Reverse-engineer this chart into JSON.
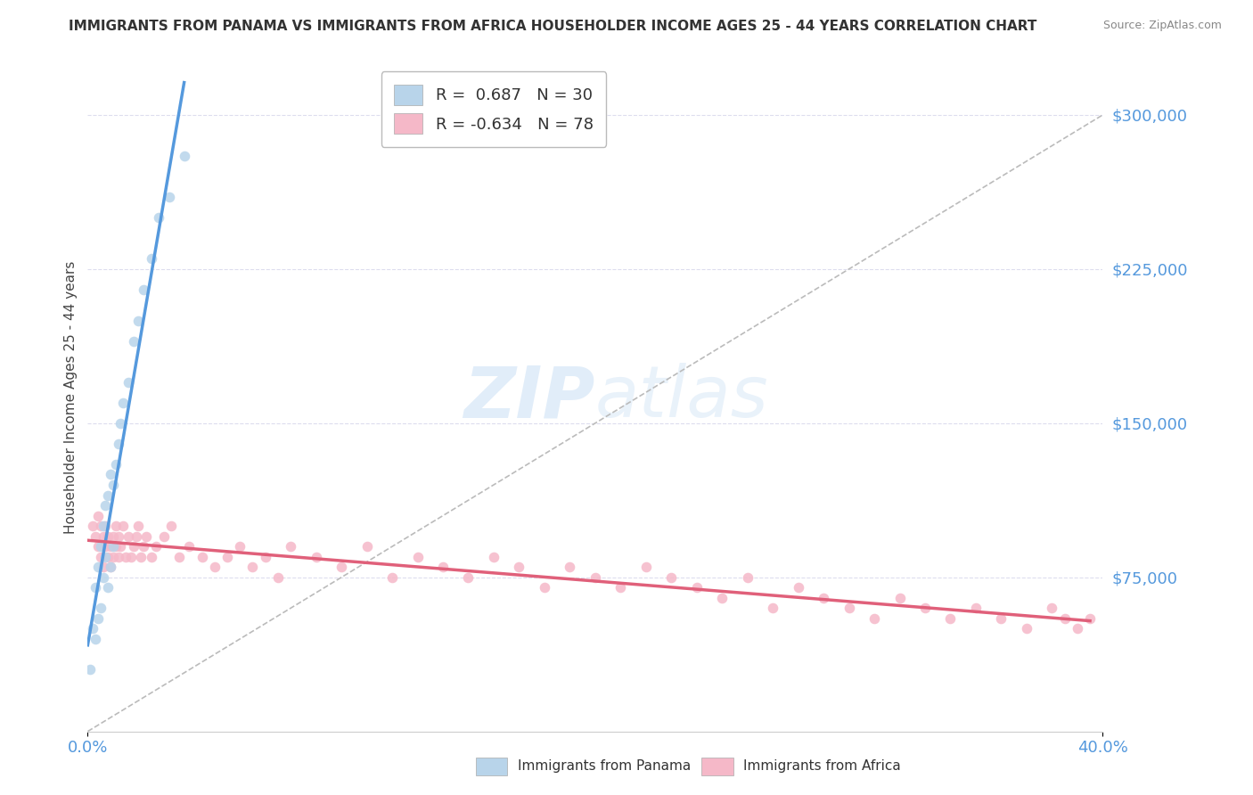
{
  "title": "IMMIGRANTS FROM PANAMA VS IMMIGRANTS FROM AFRICA HOUSEHOLDER INCOME AGES 25 - 44 YEARS CORRELATION CHART",
  "source": "Source: ZipAtlas.com",
  "ylabel": "Householder Income Ages 25 - 44 years",
  "yticks": [
    0,
    75000,
    150000,
    225000,
    300000
  ],
  "xlim": [
    0.0,
    0.4
  ],
  "ylim": [
    0,
    325000
  ],
  "panama_R": 0.687,
  "panama_N": 30,
  "africa_R": -0.634,
  "africa_N": 78,
  "panama_color": "#b8d4ea",
  "africa_color": "#f5b8c8",
  "panama_line_color": "#5599dd",
  "africa_line_color": "#e0607a",
  "gray_dash_color": "#bbbbbb",
  "grid_color": "#ddddee",
  "watermark_color": "#ccddf0",
  "legend_label_panama": "Immigrants from Panama",
  "legend_label_africa": "Immigrants from Africa",
  "label_color": "#5599dd",
  "panama_x": [
    0.001,
    0.002,
    0.003,
    0.003,
    0.004,
    0.004,
    0.005,
    0.005,
    0.006,
    0.006,
    0.007,
    0.007,
    0.008,
    0.008,
    0.009,
    0.009,
    0.01,
    0.01,
    0.011,
    0.012,
    0.013,
    0.014,
    0.016,
    0.018,
    0.02,
    0.022,
    0.025,
    0.028,
    0.032,
    0.038
  ],
  "panama_y": [
    30000,
    50000,
    45000,
    70000,
    55000,
    80000,
    60000,
    90000,
    75000,
    100000,
    85000,
    110000,
    70000,
    115000,
    80000,
    125000,
    90000,
    120000,
    130000,
    140000,
    150000,
    160000,
    170000,
    190000,
    200000,
    215000,
    230000,
    250000,
    260000,
    280000
  ],
  "africa_x": [
    0.002,
    0.003,
    0.004,
    0.004,
    0.005,
    0.005,
    0.006,
    0.006,
    0.007,
    0.007,
    0.008,
    0.008,
    0.009,
    0.009,
    0.01,
    0.01,
    0.011,
    0.011,
    0.012,
    0.012,
    0.013,
    0.014,
    0.015,
    0.016,
    0.017,
    0.018,
    0.019,
    0.02,
    0.021,
    0.022,
    0.023,
    0.025,
    0.027,
    0.03,
    0.033,
    0.036,
    0.04,
    0.045,
    0.05,
    0.055,
    0.06,
    0.065,
    0.07,
    0.075,
    0.08,
    0.09,
    0.1,
    0.11,
    0.12,
    0.13,
    0.14,
    0.15,
    0.16,
    0.17,
    0.18,
    0.19,
    0.2,
    0.21,
    0.22,
    0.23,
    0.24,
    0.25,
    0.26,
    0.27,
    0.28,
    0.29,
    0.3,
    0.31,
    0.32,
    0.33,
    0.34,
    0.35,
    0.36,
    0.37,
    0.38,
    0.385,
    0.39,
    0.395
  ],
  "africa_y": [
    100000,
    95000,
    105000,
    90000,
    100000,
    85000,
    95000,
    80000,
    90000,
    100000,
    85000,
    95000,
    90000,
    80000,
    95000,
    85000,
    100000,
    90000,
    85000,
    95000,
    90000,
    100000,
    85000,
    95000,
    85000,
    90000,
    95000,
    100000,
    85000,
    90000,
    95000,
    85000,
    90000,
    95000,
    100000,
    85000,
    90000,
    85000,
    80000,
    85000,
    90000,
    80000,
    85000,
    75000,
    90000,
    85000,
    80000,
    90000,
    75000,
    85000,
    80000,
    75000,
    85000,
    80000,
    70000,
    80000,
    75000,
    70000,
    80000,
    75000,
    70000,
    65000,
    75000,
    60000,
    70000,
    65000,
    60000,
    55000,
    65000,
    60000,
    55000,
    60000,
    55000,
    50000,
    60000,
    55000,
    50000,
    55000
  ]
}
